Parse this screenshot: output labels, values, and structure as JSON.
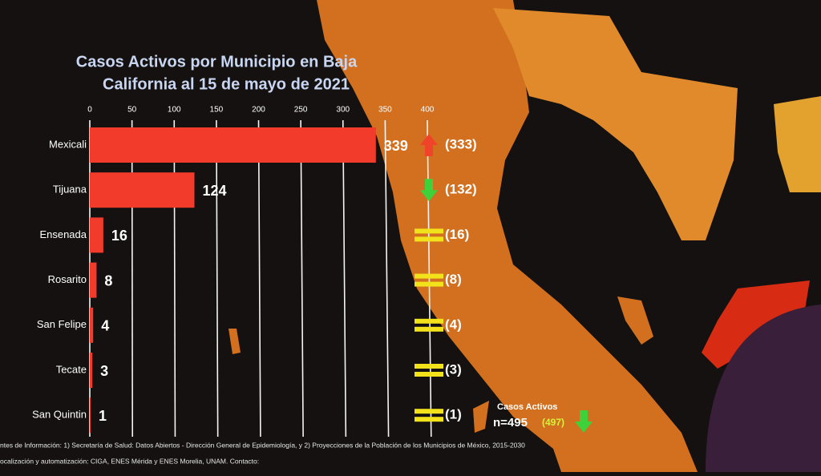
{
  "chart_data": {
    "type": "bar",
    "orientation": "horizontal",
    "title": [
      "Casos Activos por Municipio en Baja",
      "California al 15 de mayo de 2021"
    ],
    "categories": [
      "Mexicali",
      "Tijuana",
      "Ensenada",
      "Rosarito",
      "San Felipe",
      "Tecate",
      "San Quintin"
    ],
    "values": [
      339,
      124,
      16,
      8,
      4,
      3,
      1
    ],
    "color": "#f23b2b",
    "previous": {
      "values": [
        333,
        132,
        16,
        8,
        4,
        3,
        1
      ],
      "value_labels": [
        "(333)",
        "(132)",
        "(16)",
        "(8)",
        "(4)",
        "(3)",
        "(1)"
      ]
    },
    "total": {
      "label": "Casos Activos",
      "value": 495,
      "value_label": "n=495",
      "previous": 497,
      "previous_label": "(497)"
    },
    "xlim": [
      0,
      400
    ],
    "xticks": [
      0,
      50,
      100,
      150,
      200,
      250,
      300,
      350,
      400
    ],
    "grid": true,
    "footer": [
      "ntes de Información: 1) Secretaría de Salud: Datos Abiertos - Dirección General de Epidemiología, y 2) Proyecciones de la Población de los Municipios de México, 2015-2030",
      "ocalización y automatización: CIGA, ENES Mérida y ENES Morelia, UNAM. Contacto:"
    ]
  }
}
